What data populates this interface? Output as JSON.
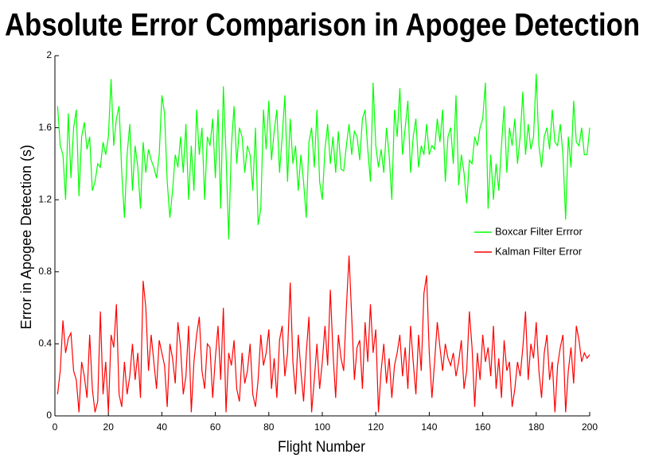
{
  "chart_data": {
    "type": "line",
    "title": "Absolute Error Comparison in Apogee Detection",
    "x_label": "Flight Number",
    "y_label": "Error in Apogee Detection (s)",
    "xlim": [
      0,
      200
    ],
    "xticks": [
      0,
      20,
      40,
      60,
      80,
      100,
      120,
      140,
      160,
      180,
      200
    ],
    "ylim": [
      0,
      2
    ],
    "yticks": [
      0,
      0.4,
      0.8,
      1.2,
      1.6,
      2
    ],
    "grid": false,
    "legend": "right",
    "x": [
      1,
      2,
      3,
      4,
      5,
      6,
      7,
      8,
      9,
      10,
      11,
      12,
      13,
      14,
      15,
      16,
      17,
      18,
      19,
      20,
      21,
      22,
      23,
      24,
      25,
      26,
      27,
      28,
      29,
      30,
      31,
      32,
      33,
      34,
      35,
      36,
      37,
      38,
      39,
      40,
      41,
      42,
      43,
      44,
      45,
      46,
      47,
      48,
      49,
      50,
      51,
      52,
      53,
      54,
      55,
      56,
      57,
      58,
      59,
      60,
      61,
      62,
      63,
      64,
      65,
      66,
      67,
      68,
      69,
      70,
      71,
      72,
      73,
      74,
      75,
      76,
      77,
      78,
      79,
      80,
      81,
      82,
      83,
      84,
      85,
      86,
      87,
      88,
      89,
      90,
      91,
      92,
      93,
      94,
      95,
      96,
      97,
      98,
      99,
      100,
      101,
      102,
      103,
      104,
      105,
      106,
      107,
      108,
      109,
      110,
      111,
      112,
      113,
      114,
      115,
      116,
      117,
      118,
      119,
      120,
      121,
      122,
      123,
      124,
      125,
      126,
      127,
      128,
      129,
      130,
      131,
      132,
      133,
      134,
      135,
      136,
      137,
      138,
      139,
      140,
      141,
      142,
      143,
      144,
      145,
      146,
      147,
      148,
      149,
      150,
      151,
      152,
      153,
      154,
      155,
      156,
      157,
      158,
      159,
      160,
      161,
      162,
      163,
      164,
      165,
      166,
      167,
      168,
      169,
      170,
      171,
      172,
      173,
      174,
      175,
      176,
      177,
      178,
      179,
      180,
      181,
      182,
      183,
      184,
      185,
      186,
      187,
      188,
      189,
      190,
      191,
      192,
      193,
      194,
      195,
      196,
      197,
      198,
      199,
      200
    ],
    "series": [
      {
        "name": "Boxcar Filter Errror",
        "color": "#00ff00",
        "values": [
          1.72,
          1.5,
          1.45,
          1.2,
          1.68,
          1.32,
          1.6,
          1.7,
          1.22,
          1.55,
          1.63,
          1.48,
          1.55,
          1.25,
          1.3,
          1.4,
          1.38,
          1.52,
          1.45,
          1.55,
          1.87,
          1.5,
          1.65,
          1.72,
          1.35,
          1.1,
          1.45,
          1.62,
          1.25,
          1.5,
          1.38,
          1.15,
          1.52,
          1.35,
          1.48,
          1.42,
          1.38,
          1.32,
          1.45,
          1.78,
          1.68,
          1.3,
          1.1,
          1.25,
          1.45,
          1.38,
          1.55,
          1.35,
          1.62,
          1.2,
          1.5,
          1.25,
          1.7,
          1.45,
          1.6,
          1.2,
          1.55,
          1.5,
          1.65,
          1.32,
          1.7,
          1.15,
          1.83,
          1.45,
          0.98,
          1.5,
          1.72,
          1.4,
          1.6,
          1.55,
          1.35,
          1.5,
          1.45,
          1.25,
          1.6,
          1.06,
          1.15,
          1.7,
          1.48,
          1.75,
          1.42,
          1.58,
          1.7,
          1.35,
          1.55,
          1.78,
          1.3,
          1.65,
          1.4,
          1.5,
          1.25,
          1.45,
          1.3,
          1.1,
          1.52,
          1.6,
          1.38,
          1.7,
          1.3,
          1.2,
          1.48,
          1.62,
          1.4,
          1.55,
          1.35,
          1.58,
          1.37,
          1.36,
          1.5,
          1.62,
          1.45,
          1.58,
          1.55,
          1.42,
          1.65,
          1.7,
          1.48,
          1.3,
          1.85,
          1.5,
          1.38,
          1.48,
          1.35,
          1.6,
          1.45,
          1.2,
          1.7,
          1.55,
          1.82,
          1.45,
          1.6,
          1.75,
          1.35,
          1.55,
          1.65,
          1.38,
          1.5,
          1.45,
          1.62,
          1.45,
          1.5,
          1.48,
          1.65,
          1.52,
          1.7,
          1.3,
          1.55,
          1.6,
          1.4,
          1.78,
          1.28,
          1.45,
          1.35,
          1.18,
          1.42,
          1.4,
          1.55,
          1.5,
          1.6,
          1.65,
          1.85,
          1.15,
          1.45,
          1.2,
          1.4,
          1.25,
          1.5,
          1.72,
          1.35,
          1.6,
          1.5,
          1.65,
          1.4,
          1.55,
          1.8,
          1.45,
          1.62,
          1.48,
          1.55,
          1.9,
          1.5,
          1.38,
          1.55,
          1.6,
          1.48,
          1.7,
          1.52,
          1.5,
          1.62,
          1.45,
          1.09,
          1.55,
          1.38,
          1.75,
          1.52,
          1.5,
          1.6,
          1.45,
          1.45,
          1.6
        ]
      },
      {
        "name": "Kalman Filter Error",
        "color": "#ff0000",
        "values": [
          0.12,
          0.25,
          0.53,
          0.35,
          0.43,
          0.46,
          0.25,
          0.2,
          0.02,
          0.3,
          0.22,
          0.1,
          0.45,
          0.15,
          0.02,
          0.08,
          0.58,
          0.12,
          0.3,
          0.02,
          0.45,
          0.38,
          0.62,
          0.12,
          0.05,
          0.3,
          0.12,
          0.22,
          0.4,
          0.2,
          0.35,
          0.1,
          0.75,
          0.6,
          0.25,
          0.45,
          0.3,
          0.15,
          0.42,
          0.35,
          0.28,
          0.05,
          0.4,
          0.32,
          0.18,
          0.52,
          0.38,
          0.12,
          0.22,
          0.5,
          0.02,
          0.3,
          0.45,
          0.55,
          0.25,
          0.15,
          0.4,
          0.38,
          0.1,
          0.32,
          0.5,
          0.2,
          0.6,
          0.02,
          0.35,
          0.28,
          0.42,
          0.15,
          0.08,
          0.35,
          0.18,
          0.25,
          0.4,
          0.12,
          0.05,
          0.2,
          0.45,
          0.28,
          0.35,
          0.48,
          0.15,
          0.32,
          0.1,
          0.42,
          0.5,
          0.22,
          0.35,
          0.74,
          0.3,
          0.12,
          0.45,
          0.25,
          0.08,
          0.35,
          0.55,
          0.02,
          0.2,
          0.4,
          0.15,
          0.3,
          0.5,
          0.28,
          0.7,
          0.35,
          0.1,
          0.45,
          0.32,
          0.25,
          0.6,
          0.89,
          0.55,
          0.2,
          0.38,
          0.42,
          0.15,
          0.52,
          0.3,
          0.62,
          0.35,
          0.48,
          0.02,
          0.25,
          0.4,
          0.18,
          0.32,
          0.1,
          0.28,
          0.35,
          0.45,
          0.22,
          0.38,
          0.15,
          0.5,
          0.3,
          0.12,
          0.45,
          0.25,
          0.68,
          0.78,
          0.35,
          0.1,
          0.3,
          0.52,
          0.38,
          0.25,
          0.4,
          0.32,
          0.28,
          0.35,
          0.22,
          0.3,
          0.42,
          0.15,
          0.25,
          0.58,
          0.38,
          0.05,
          0.35,
          0.2,
          0.45,
          0.3,
          0.38,
          0.22,
          0.5,
          0.15,
          0.32,
          0.1,
          0.42,
          0.25,
          0.3,
          0.05,
          0.15,
          0.3,
          0.22,
          0.38,
          0.58,
          0.2,
          0.4,
          0.32,
          0.52,
          0.25,
          0.1,
          0.35,
          0.45,
          0.2,
          0.3,
          0.02,
          0.28,
          0.38,
          0.45,
          0.02,
          0.25,
          0.38,
          0.18,
          0.5,
          0.42,
          0.3,
          0.35,
          0.32,
          0.34
        ]
      }
    ]
  }
}
